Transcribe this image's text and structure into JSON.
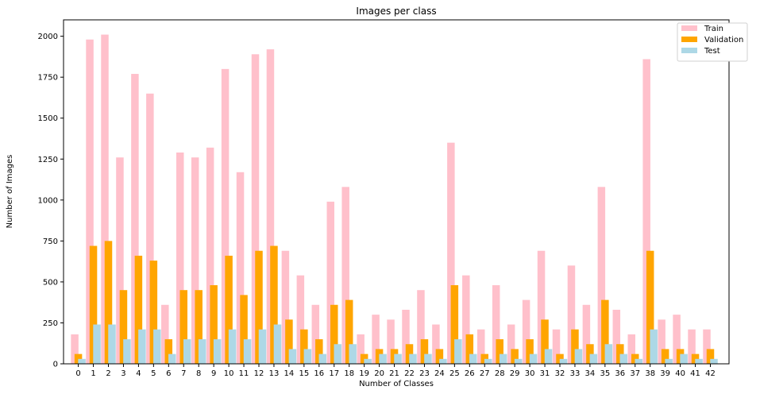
{
  "chart_data": {
    "type": "bar",
    "title": "Images per class",
    "xlabel": "Number of Classes",
    "ylabel": "Number of Images",
    "ylim": [
      0,
      2100
    ],
    "yticks": [
      0,
      250,
      500,
      750,
      1000,
      1250,
      1500,
      1750,
      2000
    ],
    "categories": [
      "0",
      "1",
      "2",
      "3",
      "4",
      "5",
      "6",
      "7",
      "8",
      "9",
      "10",
      "11",
      "12",
      "13",
      "14",
      "15",
      "16",
      "17",
      "18",
      "19",
      "20",
      "21",
      "22",
      "23",
      "24",
      "25",
      "26",
      "27",
      "28",
      "29",
      "30",
      "31",
      "32",
      "33",
      "34",
      "35",
      "36",
      "37",
      "38",
      "39",
      "40",
      "41",
      "42"
    ],
    "legend_position": "top-right",
    "grid": false,
    "series": [
      {
        "name": "Train",
        "color": "#ffc0cb",
        "values": [
          180,
          1980,
          2010,
          1260,
          1770,
          1650,
          360,
          1290,
          1260,
          1320,
          1800,
          1170,
          1890,
          1920,
          690,
          540,
          360,
          990,
          1080,
          180,
          300,
          270,
          330,
          450,
          240,
          1350,
          540,
          210,
          480,
          240,
          390,
          690,
          210,
          600,
          360,
          1080,
          330,
          180,
          1860,
          270,
          300,
          210,
          210
        ]
      },
      {
        "name": "Validation",
        "color": "#ffa500",
        "values": [
          60,
          720,
          750,
          450,
          660,
          630,
          150,
          450,
          450,
          480,
          660,
          420,
          690,
          720,
          270,
          210,
          150,
          360,
          390,
          60,
          90,
          90,
          120,
          150,
          90,
          480,
          180,
          60,
          150,
          90,
          150,
          270,
          60,
          210,
          120,
          390,
          120,
          60,
          690,
          90,
          90,
          60,
          90
        ]
      },
      {
        "name": "Test",
        "color": "#add8e6",
        "values": [
          30,
          240,
          240,
          150,
          210,
          210,
          60,
          150,
          150,
          150,
          210,
          150,
          210,
          240,
          90,
          90,
          60,
          120,
          120,
          30,
          60,
          60,
          60,
          60,
          30,
          150,
          60,
          30,
          60,
          30,
          60,
          90,
          30,
          90,
          60,
          120,
          60,
          30,
          210,
          30,
          60,
          30,
          30
        ]
      }
    ]
  }
}
